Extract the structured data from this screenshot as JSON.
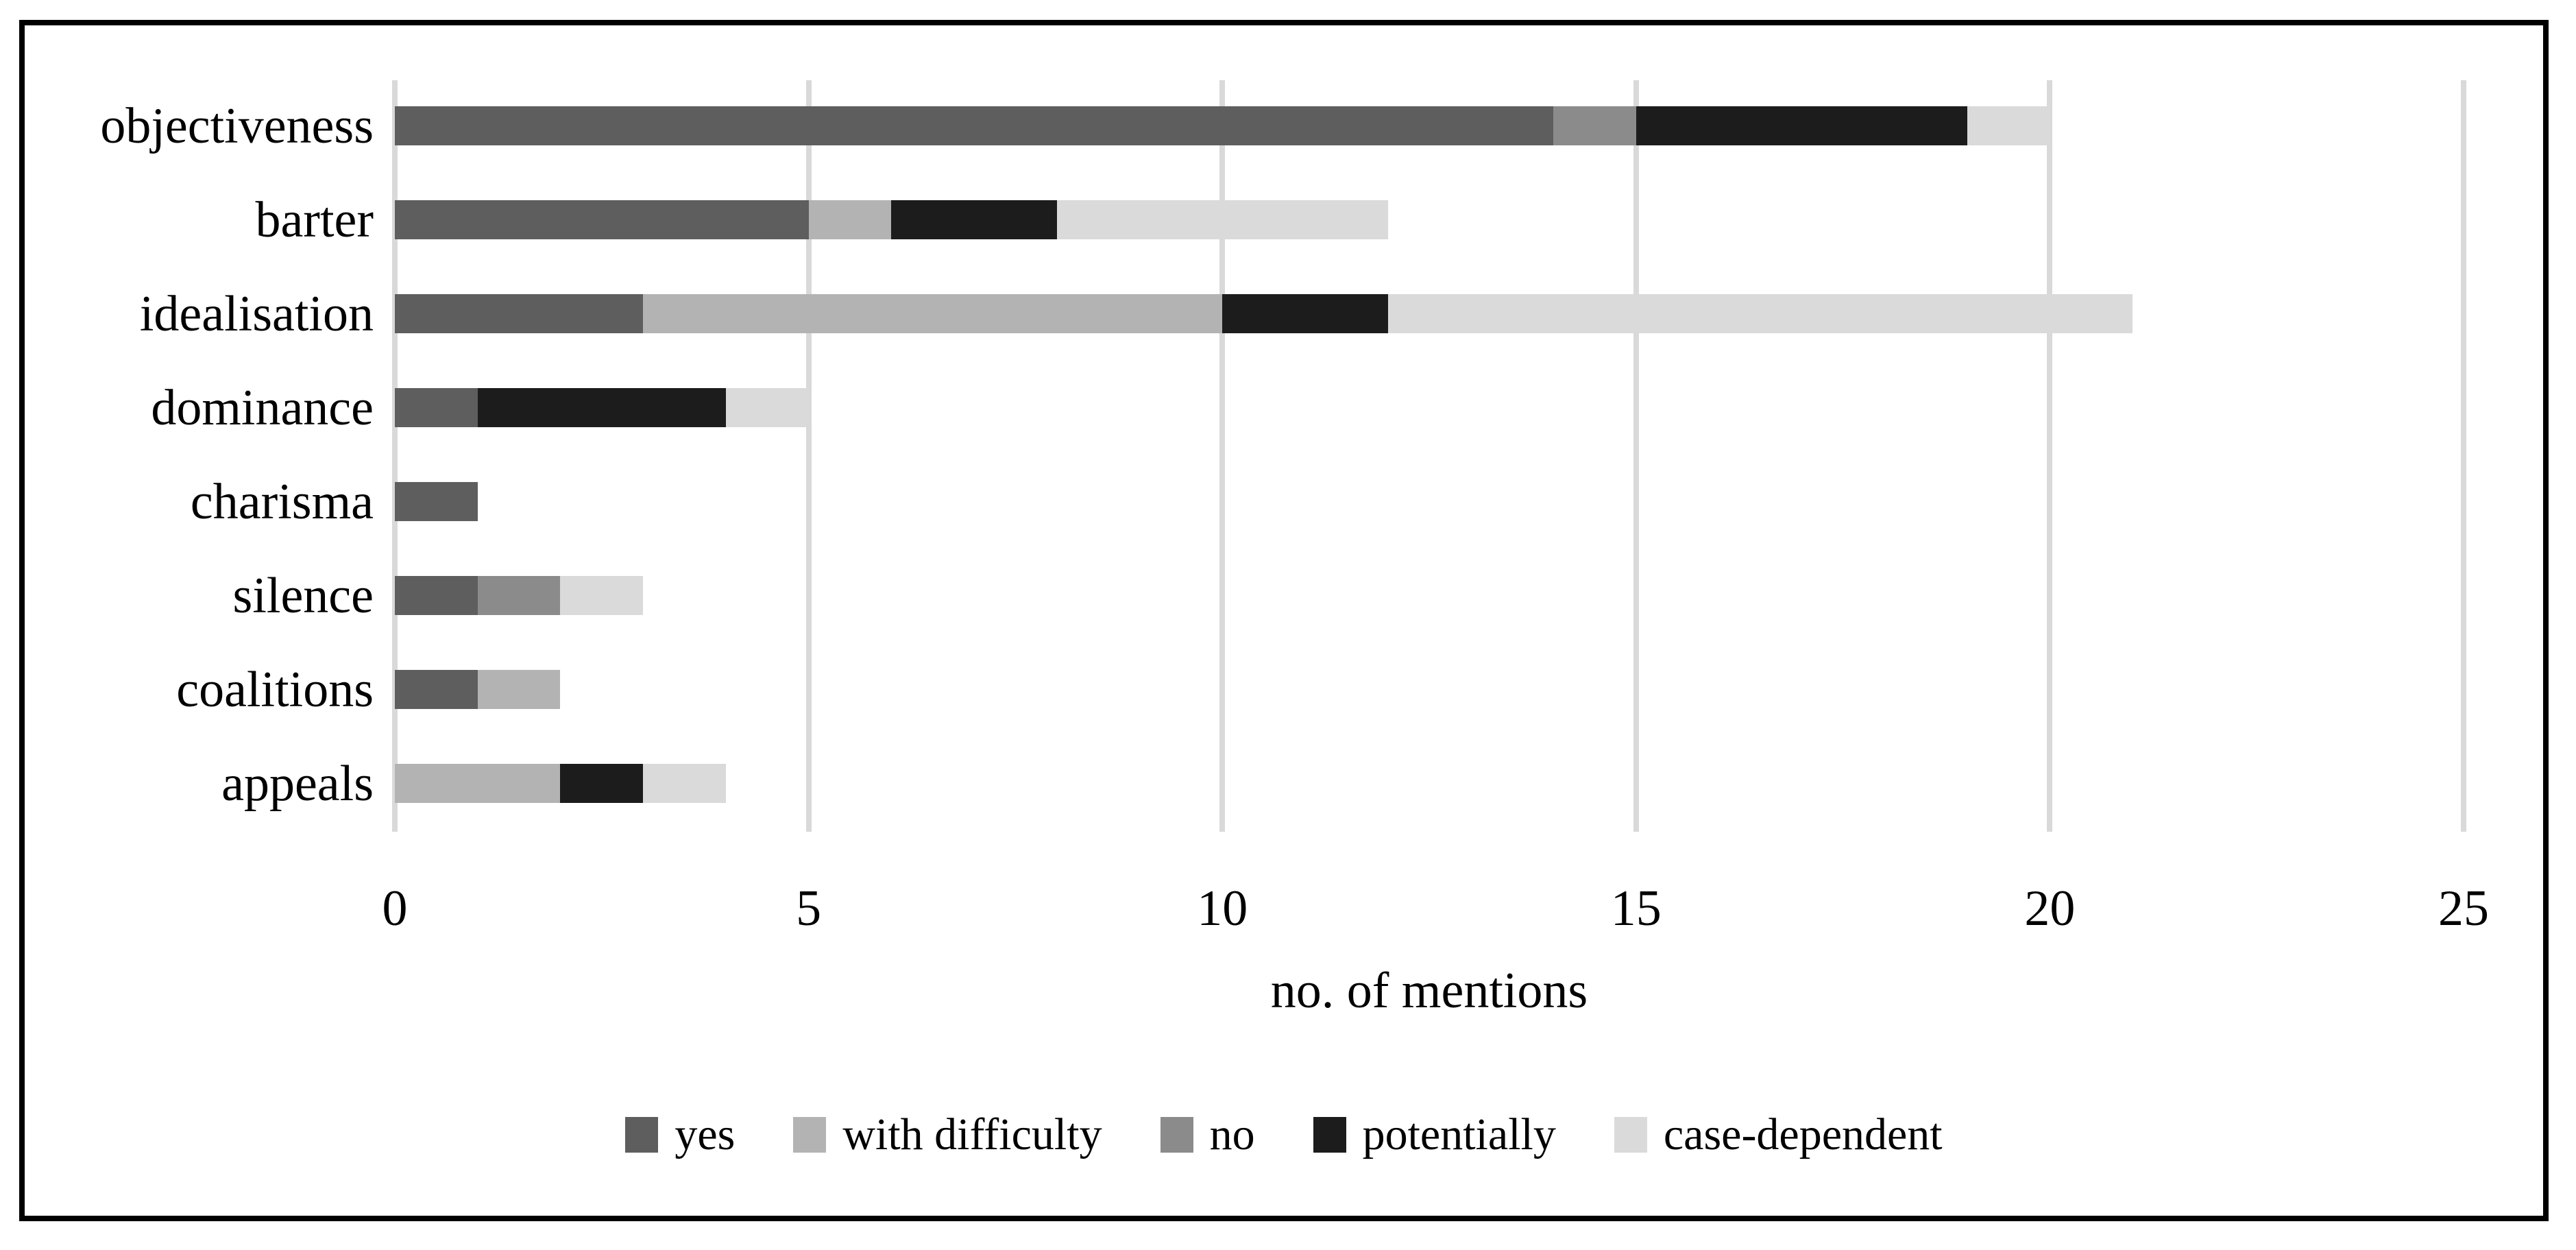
{
  "chart_data": {
    "type": "bar",
    "orientation": "horizontal",
    "stacked": true,
    "title": "",
    "xlabel": "no. of mentions",
    "ylabel": "",
    "categories": [
      "objectiveness",
      "barter",
      "idealisation",
      "dominance",
      "charisma",
      "silence",
      "coalitions",
      "appeals"
    ],
    "series": [
      {
        "name": "yes",
        "color": "#5e5e5e",
        "values": [
          14,
          5,
          3,
          1,
          1,
          1,
          1,
          0
        ]
      },
      {
        "name": "with difficulty",
        "color": "#b3b3b3",
        "values": [
          0,
          1,
          7,
          0,
          0,
          0,
          1,
          2
        ]
      },
      {
        "name": "no",
        "color": "#8b8b8b",
        "values": [
          1,
          0,
          0,
          0,
          0,
          1,
          0,
          0
        ]
      },
      {
        "name": "potentially",
        "color": "#1c1c1c",
        "values": [
          4,
          2,
          2,
          3,
          0,
          0,
          0,
          1
        ]
      },
      {
        "name": "case-dependent",
        "color": "#dadada",
        "values": [
          1,
          4,
          9,
          1,
          0,
          1,
          0,
          1
        ]
      }
    ],
    "totals": [
      20,
      12,
      21,
      5,
      1,
      3,
      2,
      4
    ],
    "x_ticks": [
      "0",
      "5",
      "10",
      "15",
      "20",
      "25"
    ],
    "xlim": [
      0,
      25
    ],
    "grid": "vertical",
    "gridline_color": "#d9d9d9",
    "frame_border_color": "#000000",
    "legend_position": "bottom-center"
  }
}
